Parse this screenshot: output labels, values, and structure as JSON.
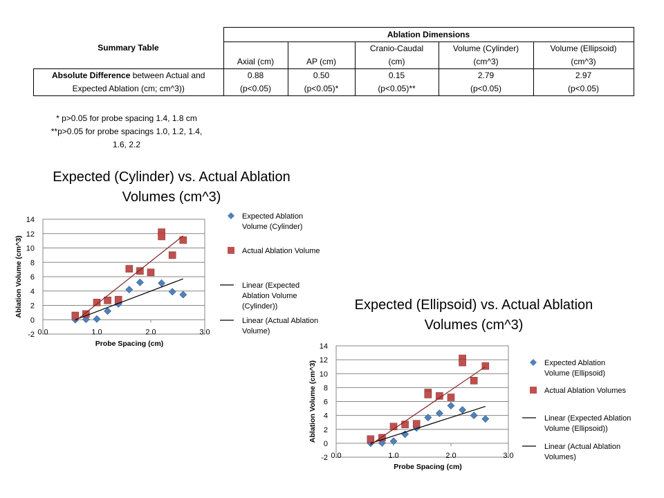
{
  "summary_table": {
    "title": "Summary Table",
    "group_header": "Ablation Dimensions",
    "columns": [
      {
        "line1": "",
        "line2": "Axial (cm)"
      },
      {
        "line1": "",
        "line2": "AP (cm)"
      },
      {
        "line1": "Cranio-Caudal",
        "line2": "(cm)"
      },
      {
        "line1": "Volume (Cylinder)",
        "line2": "(cm^3)"
      },
      {
        "line1": "Volume (Ellipsoid)",
        "line2": "(cm^3)"
      }
    ],
    "row_label_bold": "Absolute Difference",
    "row_label_rest": " between Actual and",
    "row_label_line2": "Expected Ablation (cm; cm^3))",
    "values": [
      {
        "value": "0.88",
        "p": "(p<0.05)"
      },
      {
        "value": "0.50",
        "p": "(p<0.05)*"
      },
      {
        "value": "0.15",
        "p": "(p<0.05)**"
      },
      {
        "value": "2.79",
        "p": "(p<0.05)"
      },
      {
        "value": "2.97",
        "p": "(p<0.05)"
      }
    ]
  },
  "footnotes": {
    "line1": "* p>0.05 for probe spacing 1.4, 1.8 cm",
    "line2": "**p>0.05  for probe spacings 1.0, 1.2, 1.4,",
    "line3": "1.6, 2.2"
  },
  "colors": {
    "expected": "#4F81BD",
    "actual": "#C0504D",
    "expected_trend": "#000000",
    "actual_trend": "#7F1F1F",
    "grid": "#868686"
  },
  "chart_data": [
    {
      "type": "scatter",
      "title_line1": "Expected (Cylinder) vs. Actual Ablation",
      "title_line2": "Volumes (cm^3)",
      "xlabel": "Probe Spacing  (cm)",
      "ylabel": "Ablation Volume (cm^3)",
      "xlim": [
        0.0,
        3.0
      ],
      "ylim": [
        -2,
        14
      ],
      "x_ticks": [
        "0.0",
        "1.0",
        "2.0",
        "3.0"
      ],
      "y_ticks": [
        "-2",
        "0",
        "2",
        "4",
        "6",
        "8",
        "10",
        "12",
        "14"
      ],
      "grid": true,
      "series": [
        {
          "name": "Expected Ablation Volume (Cylinder)",
          "marker": "diamond",
          "color": "#4F81BD",
          "x": [
            0.6,
            0.8,
            1.0,
            1.2,
            1.4,
            1.6,
            1.8,
            2.0,
            2.2,
            2.4,
            2.6
          ],
          "y": [
            0.0,
            0.05,
            0.1,
            1.2,
            2.2,
            4.2,
            5.2,
            6.6,
            5.1,
            3.9,
            3.5
          ]
        },
        {
          "name": "Actual Ablation Volume",
          "marker": "square",
          "color": "#C0504D",
          "x": [
            0.6,
            0.8,
            1.0,
            1.2,
            1.4,
            1.6,
            1.8,
            2.0,
            2.2,
            2.2,
            2.4,
            2.6
          ],
          "y": [
            0.6,
            0.8,
            2.4,
            2.7,
            2.8,
            7.1,
            6.8,
            6.6,
            12.2,
            11.6,
            9.0,
            11.1
          ]
        }
      ],
      "trendlines": [
        {
          "name": "Linear (Expected Ablation Volume (Cylinder))",
          "x": [
            0.6,
            2.6
          ],
          "y": [
            0.0,
            5.7
          ],
          "color": "#000000"
        },
        {
          "name": "Linear (Actual Ablation Volume)",
          "x": [
            0.6,
            2.6
          ],
          "y": [
            -0.2,
            11.7
          ],
          "color": "#7F1F1F"
        }
      ],
      "legend": [
        {
          "kind": "diamond",
          "color": "#4F81BD",
          "lines": [
            "Expected Ablation",
            "Volume (Cylinder)"
          ]
        },
        {
          "kind": "square",
          "color": "#C0504D",
          "lines": [
            "Actual Ablation Volume"
          ]
        },
        {
          "kind": "line",
          "color": "#000000",
          "lines": [
            "Linear (Expected",
            "Ablation Volume",
            "(Cylinder))"
          ]
        },
        {
          "kind": "line",
          "color": "#000000",
          "lines": [
            "Linear (Actual Ablation",
            "Volume)"
          ]
        }
      ]
    },
    {
      "type": "scatter",
      "title_line1": "Expected (Ellipsoid) vs. Actual Ablation",
      "title_line2": "Volumes (cm^3)",
      "xlabel": "Probe Spacing  (cm)",
      "ylabel": "Ablation Volume (cm^3)",
      "xlim": [
        0.0,
        3.0
      ],
      "ylim": [
        -2,
        14
      ],
      "x_ticks": [
        "0.0",
        "1.0",
        "2.0",
        "3.0"
      ],
      "y_ticks": [
        "-2",
        "0",
        "2",
        "4",
        "6",
        "8",
        "10",
        "12",
        "14"
      ],
      "grid": true,
      "series": [
        {
          "name": "Expected Ablation Volume (Ellipsoid)",
          "marker": "diamond",
          "color": "#4F81BD",
          "x": [
            0.6,
            0.8,
            1.0,
            1.2,
            1.4,
            1.6,
            1.8,
            2.0,
            2.2,
            2.4,
            2.6
          ],
          "y": [
            0.0,
            0.05,
            0.3,
            1.3,
            2.2,
            3.7,
            4.3,
            5.4,
            4.8,
            4.0,
            3.5
          ]
        },
        {
          "name": "Actual Ablation Volumes",
          "marker": "square",
          "color": "#C0504D",
          "x": [
            0.6,
            0.8,
            1.0,
            1.2,
            1.4,
            1.6,
            1.6,
            1.8,
            2.0,
            2.2,
            2.2,
            2.4,
            2.6
          ],
          "y": [
            0.6,
            0.8,
            2.4,
            2.7,
            2.8,
            7.3,
            7.0,
            6.8,
            6.6,
            12.2,
            11.6,
            9.0,
            11.1
          ]
        }
      ],
      "trendlines": [
        {
          "name": "Linear (Expected Ablation Volume (Ellipsoid))",
          "x": [
            0.6,
            2.6
          ],
          "y": [
            0.0,
            5.3
          ],
          "color": "#000000"
        },
        {
          "name": "Linear (Actual Ablation Volumes)",
          "x": [
            0.6,
            2.6
          ],
          "y": [
            -0.2,
            11.0
          ],
          "color": "#7F1F1F"
        }
      ],
      "legend": [
        {
          "kind": "diamond",
          "color": "#4F81BD",
          "lines": [
            "Expected Ablation",
            "Volume (Ellipsoid)"
          ]
        },
        {
          "kind": "square",
          "color": "#C0504D",
          "lines": [
            "Actual Ablation Volumes"
          ]
        },
        {
          "kind": "line",
          "color": "#000000",
          "lines": [
            "Linear (Expected Ablation",
            "Volume (Ellipsoid))"
          ]
        },
        {
          "kind": "line",
          "color": "#000000",
          "lines": [
            "Linear (Actual Ablation",
            "Volumes)"
          ]
        }
      ]
    }
  ]
}
